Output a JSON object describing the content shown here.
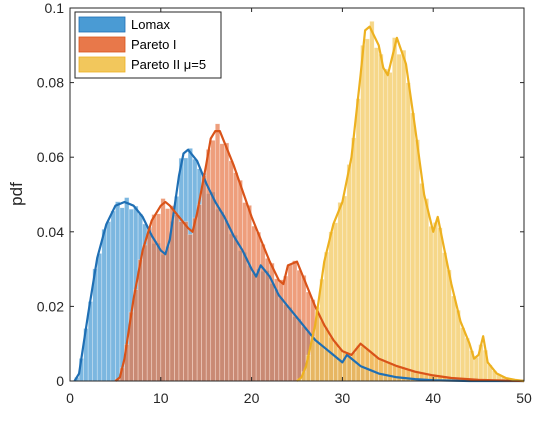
{
  "chart_data": {
    "type": "bar",
    "title": "",
    "xlabel": "",
    "ylabel": "pdf",
    "xlim": [
      0,
      50
    ],
    "ylim": [
      0,
      0.1
    ],
    "xticks": [
      "0",
      "10",
      "20",
      "30",
      "40",
      "50"
    ],
    "yticks": [
      "0",
      "0.02",
      "0.04",
      "0.06",
      "0.08",
      "0.1"
    ],
    "grid": false,
    "legend_position": "top-left",
    "series": [
      {
        "name": "Lomax",
        "bar_color": "#4a9bd4",
        "line_color": "#1f6fb4",
        "x": [
          0.5,
          1,
          2,
          3,
          4,
          5,
          6,
          7,
          8,
          9,
          10,
          10.5,
          11,
          12,
          12.5,
          13,
          14,
          15,
          16,
          17,
          18,
          19,
          20,
          20.5,
          21,
          22,
          23,
          24,
          25,
          26,
          27,
          28,
          29,
          30,
          30.5,
          31,
          32,
          33,
          34,
          35,
          36,
          38,
          40,
          42,
          44,
          46,
          48,
          50
        ],
        "y": [
          0,
          0.002,
          0.018,
          0.033,
          0.042,
          0.047,
          0.048,
          0.047,
          0.044,
          0.039,
          0.035,
          0.034,
          0.038,
          0.055,
          0.061,
          0.062,
          0.059,
          0.053,
          0.048,
          0.044,
          0.039,
          0.035,
          0.03,
          0.028,
          0.031,
          0.028,
          0.023,
          0.02,
          0.017,
          0.014,
          0.011,
          0.009,
          0.007,
          0.005,
          0.007,
          0.006,
          0.004,
          0.003,
          0.002,
          0.0015,
          0.001,
          0.0005,
          0.0002,
          0.0001,
          0,
          0,
          0,
          0
        ]
      },
      {
        "name": "Pareto I",
        "bar_color": "#e8784a",
        "line_color": "#d95319",
        "x": [
          5,
          5.5,
          6,
          7,
          8,
          9,
          10,
          10.5,
          11,
          12,
          13,
          13.5,
          14,
          15,
          15.5,
          16,
          16.5,
          17,
          18,
          19,
          20,
          21,
          22,
          23,
          23.5,
          24,
          25,
          26,
          27,
          28,
          29,
          30,
          31,
          32,
          33,
          34,
          36,
          38,
          40,
          42,
          45,
          48,
          50
        ],
        "y": [
          0,
          0.001,
          0.006,
          0.022,
          0.035,
          0.043,
          0.047,
          0.048,
          0.047,
          0.044,
          0.041,
          0.04,
          0.045,
          0.058,
          0.065,
          0.067,
          0.067,
          0.064,
          0.058,
          0.051,
          0.044,
          0.038,
          0.032,
          0.027,
          0.026,
          0.031,
          0.032,
          0.026,
          0.02,
          0.015,
          0.011,
          0.008,
          0.007,
          0.01,
          0.008,
          0.006,
          0.004,
          0.0025,
          0.0015,
          0.0008,
          0.0003,
          0.0001,
          0
        ]
      },
      {
        "name": "Pareto II μ=5",
        "bar_color": "#f2c75c",
        "line_color": "#edb120",
        "x": [
          25,
          25.5,
          26,
          27,
          28,
          29,
          30,
          31,
          32,
          32.5,
          33,
          34,
          34.5,
          35,
          35.5,
          36,
          37,
          38,
          39,
          40,
          40.5,
          41,
          42,
          43,
          44,
          44.5,
          45,
          45.5,
          46,
          47,
          48,
          49,
          50
        ],
        "y": [
          0,
          0.001,
          0.004,
          0.015,
          0.032,
          0.042,
          0.048,
          0.06,
          0.082,
          0.094,
          0.095,
          0.09,
          0.084,
          0.082,
          0.087,
          0.092,
          0.085,
          0.068,
          0.05,
          0.04,
          0.044,
          0.038,
          0.026,
          0.016,
          0.01,
          0.006,
          0.007,
          0.012,
          0.005,
          0.002,
          0.0008,
          0.0003,
          0
        ]
      }
    ]
  }
}
